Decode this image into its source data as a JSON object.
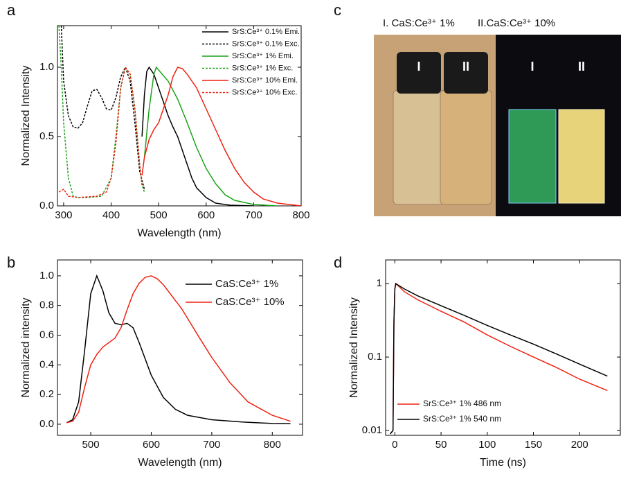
{
  "panel_labels": [
    "a",
    "b",
    "c",
    "d"
  ],
  "photo": {
    "captions": [
      "I. CaS:Ce³⁺ 1%",
      "II.CaS:Ce³⁺ 10%"
    ],
    "vial_labels": [
      "I",
      "II",
      "I",
      "II"
    ]
  },
  "chart_data": [
    {
      "type": "line",
      "xlabel": "Wavelength (nm)",
      "ylabel": "Normalized Intensity",
      "xlim": [
        287,
        800
      ],
      "ylim": [
        0,
        1.3
      ],
      "xticks": [
        300,
        400,
        500,
        600,
        700,
        800
      ],
      "yticks": [
        {
          "value": 0,
          "label": "0.0"
        },
        0.5,
        {
          "value": 1,
          "label": "1.0"
        }
      ],
      "legend": "upper right",
      "log_y": false,
      "series": [
        {
          "name": "SrS:Ce³⁺ 0.1% Emi.",
          "color": "#000000",
          "dash": false,
          "x": [
            465,
            470,
            475,
            480,
            490,
            500,
            510,
            520,
            530,
            540,
            550,
            560,
            570,
            580,
            600,
            620,
            650,
            700
          ],
          "values": [
            0.5,
            0.8,
            0.97,
            1.0,
            0.95,
            0.85,
            0.75,
            0.65,
            0.57,
            0.5,
            0.4,
            0.3,
            0.2,
            0.13,
            0.06,
            0.02,
            0.005,
            0
          ]
        },
        {
          "name": "SrS:Ce³⁺ 0.1% Exc.",
          "color": "#000000",
          "dash": true,
          "x": [
            295,
            300,
            310,
            320,
            330,
            340,
            350,
            360,
            370,
            380,
            390,
            400,
            410,
            420,
            430,
            440,
            450,
            460,
            470
          ],
          "values": [
            1.3,
            0.9,
            0.65,
            0.57,
            0.56,
            0.6,
            0.72,
            0.83,
            0.84,
            0.78,
            0.7,
            0.69,
            0.78,
            0.93,
            1.0,
            0.9,
            0.6,
            0.25,
            0.12
          ]
        },
        {
          "name": "SrS:Ce³⁺ 1% Emi.",
          "color": "#1aa31a",
          "dash": false,
          "x": [
            470,
            480,
            490,
            495,
            500,
            520,
            540,
            560,
            580,
            600,
            620,
            640,
            660,
            700,
            750
          ],
          "values": [
            0.35,
            0.7,
            0.95,
            1.0,
            0.98,
            0.9,
            0.77,
            0.6,
            0.42,
            0.27,
            0.16,
            0.08,
            0.04,
            0.01,
            0
          ]
        },
        {
          "name": "SrS:Ce³⁺ 1% Exc.",
          "color": "#1aa31a",
          "dash": true,
          "x": [
            290,
            295,
            300,
            310,
            320,
            330,
            350,
            380,
            400,
            410,
            420,
            430,
            440,
            450,
            460,
            465,
            470
          ],
          "values": [
            1.3,
            1.0,
            0.6,
            0.2,
            0.07,
            0.06,
            0.06,
            0.07,
            0.2,
            0.5,
            0.85,
            1.0,
            0.95,
            0.7,
            0.3,
            0.15,
            0.1
          ]
        },
        {
          "name": "SrS:Ce³⁺ 10% Emi.",
          "color": "#ee2211",
          "dash": false,
          "x": [
            465,
            470,
            480,
            490,
            500,
            510,
            520,
            530,
            540,
            550,
            560,
            580,
            600,
            620,
            640,
            660,
            680,
            700,
            720,
            750,
            800
          ],
          "values": [
            0.22,
            0.35,
            0.48,
            0.55,
            0.6,
            0.7,
            0.8,
            0.93,
            1.0,
            0.99,
            0.95,
            0.85,
            0.7,
            0.55,
            0.4,
            0.27,
            0.17,
            0.1,
            0.05,
            0.02,
            0
          ]
        },
        {
          "name": "SrS:Ce³⁺ 10% Exc.",
          "color": "#ee2211",
          "dash": true,
          "x": [
            290,
            300,
            310,
            330,
            370,
            390,
            400,
            410,
            420,
            430,
            440,
            450,
            460,
            465
          ],
          "values": [
            0.1,
            0.12,
            0.07,
            0.06,
            0.07,
            0.1,
            0.2,
            0.45,
            0.85,
            1.0,
            0.95,
            0.7,
            0.3,
            0.15
          ]
        }
      ]
    },
    {
      "type": "line",
      "xlabel": "Wavelength (nm)",
      "ylabel": "Normalized intensity",
      "xlim": [
        445,
        850
      ],
      "ylim": [
        -0.075,
        1.107
      ],
      "xticks": [
        500,
        600,
        700,
        800
      ],
      "yticks": [
        {
          "value": 0,
          "label": "0.0"
        },
        0.2,
        0.4,
        0.6,
        0.8,
        {
          "value": 1,
          "label": "1.0"
        }
      ],
      "legend": "upper right",
      "log_y": false,
      "series": [
        {
          "name": "CaS:Ce³⁺ 1%",
          "color": "#000000",
          "dash": false,
          "x": [
            460,
            470,
            480,
            490,
            500,
            510,
            520,
            530,
            540,
            550,
            560,
            570,
            580,
            600,
            620,
            640,
            660,
            700,
            750,
            800,
            830
          ],
          "values": [
            0.01,
            0.03,
            0.15,
            0.5,
            0.88,
            1.0,
            0.9,
            0.75,
            0.68,
            0.67,
            0.68,
            0.65,
            0.55,
            0.33,
            0.18,
            0.1,
            0.06,
            0.03,
            0.015,
            0.005,
            0.003
          ]
        },
        {
          "name": "CaS:Ce³⁺ 10%",
          "color": "#ee2211",
          "dash": false,
          "x": [
            460,
            470,
            480,
            490,
            500,
            510,
            520,
            530,
            540,
            550,
            560,
            570,
            580,
            590,
            600,
            610,
            620,
            650,
            680,
            700,
            730,
            760,
            800,
            830
          ],
          "values": [
            0.01,
            0.02,
            0.08,
            0.25,
            0.4,
            0.47,
            0.52,
            0.55,
            0.58,
            0.65,
            0.77,
            0.88,
            0.95,
            0.99,
            1.0,
            0.98,
            0.94,
            0.78,
            0.58,
            0.45,
            0.28,
            0.15,
            0.06,
            0.02
          ]
        }
      ]
    },
    {
      "type": "line",
      "xlabel": "Time (ns)",
      "ylabel": "Normalized Intensity",
      "xlim": [
        -10,
        244
      ],
      "ylim": [
        0.0086,
        2.1
      ],
      "xticks": [
        0,
        50,
        100,
        150,
        200
      ],
      "yticks": [
        0.01,
        0.1,
        1
      ],
      "legend": "lower left",
      "log_y": true,
      "series": [
        {
          "name": "SrS:Ce³⁺ 1% 486 nm",
          "color": "#ee2211",
          "dash": false,
          "x": [
            -5,
            -2,
            -1,
            0,
            1,
            5,
            10,
            25,
            50,
            75,
            100,
            125,
            150,
            175,
            200,
            230
          ],
          "values": [
            0.009,
            0.01,
            0.3,
            0.85,
            1.0,
            0.9,
            0.78,
            0.6,
            0.42,
            0.3,
            0.2,
            0.14,
            0.1,
            0.072,
            0.05,
            0.035
          ]
        },
        {
          "name": "SrS:Ce³⁺ 1% 540 nm",
          "color": "#000000",
          "dash": false,
          "x": [
            -5,
            -2,
            -1,
            0,
            1,
            5,
            10,
            25,
            50,
            75,
            100,
            125,
            150,
            175,
            200,
            230
          ],
          "values": [
            0.009,
            0.01,
            0.3,
            0.85,
            1.0,
            0.93,
            0.85,
            0.68,
            0.5,
            0.37,
            0.27,
            0.2,
            0.15,
            0.11,
            0.08,
            0.055
          ]
        }
      ]
    }
  ]
}
